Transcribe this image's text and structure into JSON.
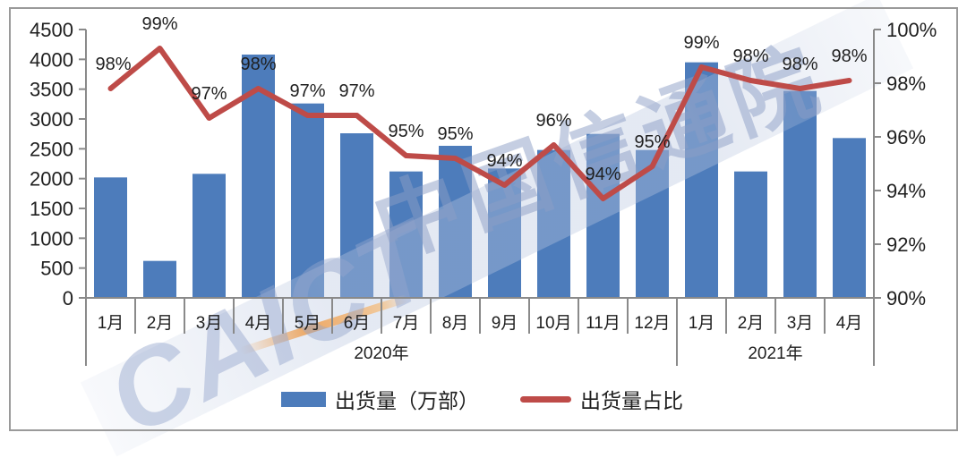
{
  "watermark": {
    "latin": "CAICT",
    "chinese": "中国信通院"
  },
  "legend": {
    "bar_label": "出货量（万部）",
    "line_label": "出货量占比"
  },
  "colors": {
    "bar": "#4D7CBB",
    "line": "#BE4B48",
    "axis": "#8a8a8a",
    "text": "#1f1f1f",
    "border": "#9a9a9a",
    "watermark_blue": "#8c9ec6",
    "watermark_orange": "#EDA55E"
  },
  "chart_data": {
    "type": "bar",
    "subtype": "combo-bar-line-dual-axis",
    "categories": [
      "1月",
      "2月",
      "3月",
      "4月",
      "5月",
      "6月",
      "7月",
      "8月",
      "9月",
      "10月",
      "11月",
      "12月",
      "1月",
      "2月",
      "3月",
      "4月"
    ],
    "year_groups": [
      {
        "label": "2020年",
        "from": 0,
        "to": 12
      },
      {
        "label": "2021年",
        "from": 12,
        "to": 16
      }
    ],
    "series": [
      {
        "name": "出货量（万部）",
        "type": "bar",
        "axis": "left",
        "color": "#4D7CBB",
        "values": [
          2020,
          620,
          2080,
          4080,
          3260,
          2760,
          2120,
          2550,
          2170,
          2480,
          2750,
          2480,
          3950,
          2120,
          3470,
          2680
        ]
      },
      {
        "name": "出货量占比",
        "type": "line",
        "axis": "right",
        "color": "#BE4B48",
        "labels": [
          "98%",
          "99%",
          "97%",
          "98%",
          "97%",
          "97%",
          "95%",
          "95%",
          "94%",
          "96%",
          "94%",
          "95%",
          "99%",
          "98%",
          "98%",
          "98%"
        ],
        "values_pct": [
          97.8,
          99.3,
          96.7,
          97.8,
          96.8,
          96.8,
          95.3,
          95.2,
          94.2,
          95.7,
          93.7,
          94.9,
          98.6,
          98.1,
          97.8,
          98.1
        ]
      }
    ],
    "left_axis": {
      "min": 0,
      "max": 4500,
      "step": 500,
      "ticks": [
        "0",
        "500",
        "1000",
        "1500",
        "2000",
        "2500",
        "3000",
        "3500",
        "4000",
        "4500"
      ]
    },
    "right_axis": {
      "min": 90,
      "max": 100,
      "step": 2,
      "ticks": [
        "90%",
        "92%",
        "94%",
        "96%",
        "98%",
        "100%"
      ]
    },
    "grid": false,
    "legend_position": "bottom-center",
    "title": ""
  }
}
